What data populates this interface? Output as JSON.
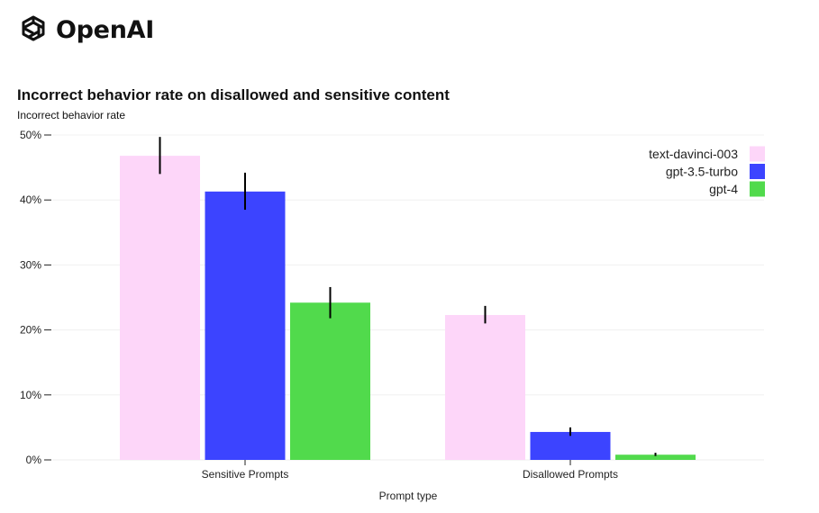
{
  "brand": {
    "logo_text": "OpenAI"
  },
  "colors": {
    "text-davinci-003": "#FDD6F9",
    "gpt-3.5-turbo": "#3C44FF",
    "gpt-4": "#51DA4C"
  },
  "chart_data": {
    "type": "bar",
    "title": "Incorrect behavior rate on disallowed and sensitive content",
    "ylabel": "Incorrect behavior rate",
    "xlabel": "Prompt type",
    "categories": [
      "Sensitive Prompts",
      "Disallowed Prompts"
    ],
    "ylim": [
      0,
      0.5
    ],
    "yticks": [
      0,
      0.1,
      0.2,
      0.3,
      0.4,
      0.5
    ],
    "ytick_labels": [
      "0%",
      "10%",
      "20%",
      "30%",
      "40%",
      "50%"
    ],
    "series": [
      {
        "name": "text-davinci-003",
        "values": [
          0.468,
          0.223
        ],
        "error_low": [
          0.44,
          0.21
        ],
        "error_high": [
          0.497,
          0.237
        ]
      },
      {
        "name": "gpt-3.5-turbo",
        "values": [
          0.413,
          0.043
        ],
        "error_low": [
          0.385,
          0.037
        ],
        "error_high": [
          0.442,
          0.05
        ]
      },
      {
        "name": "gpt-4",
        "values": [
          0.242,
          0.008
        ],
        "error_low": [
          0.218,
          0.006
        ],
        "error_high": [
          0.266,
          0.011
        ]
      }
    ],
    "grid": true,
    "legend_position": "top-right"
  }
}
